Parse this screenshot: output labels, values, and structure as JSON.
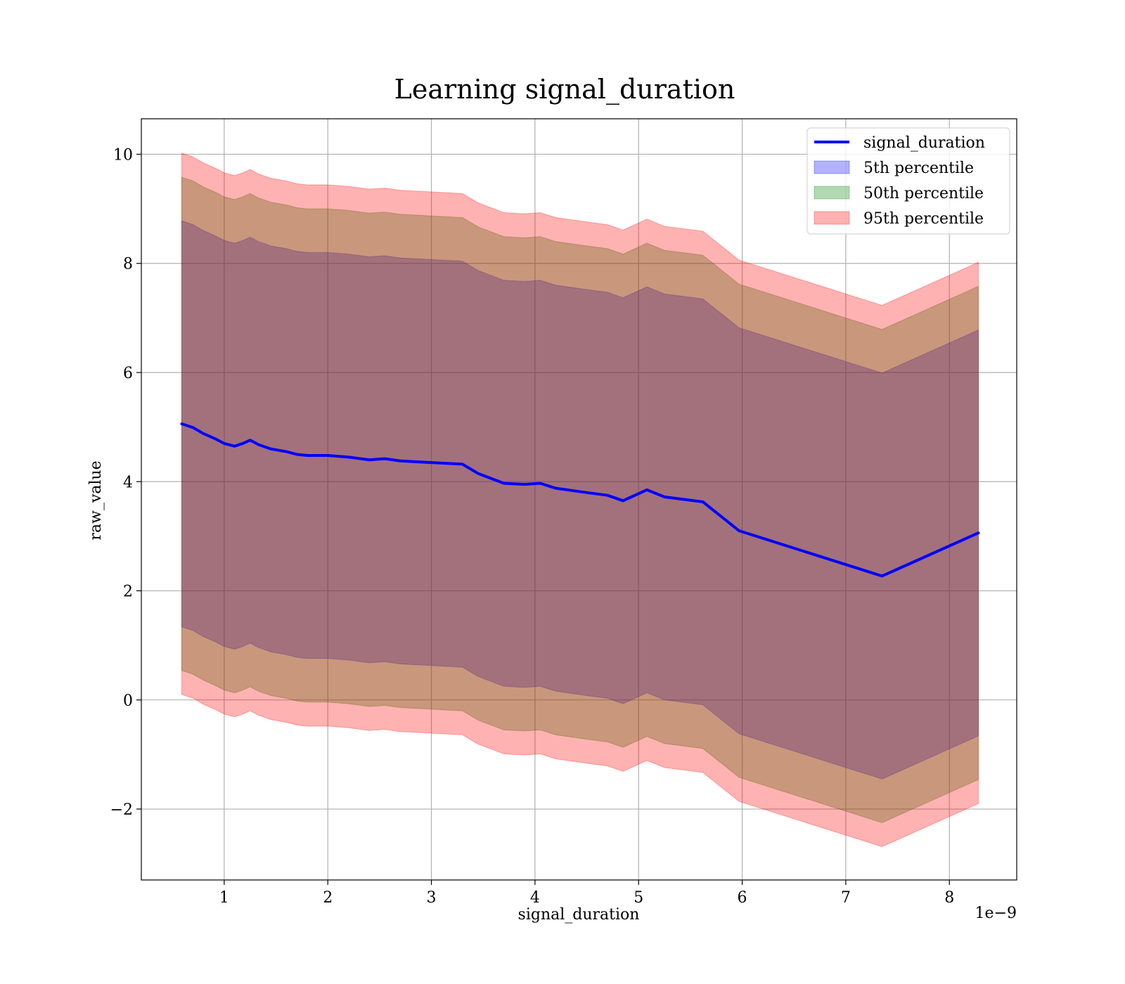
{
  "chart_data": {
    "type": "line",
    "title": "Learning signal_duration",
    "xlabel": "signal_duration",
    "ylabel": "raw_value",
    "x_offset_text": "1e−9",
    "xlim": [
      0.2,
      8.65
    ],
    "ylim": [
      -3.3,
      10.65
    ],
    "grid": true,
    "legend_position": "upper right",
    "x_ticks": [
      1,
      2,
      3,
      4,
      5,
      6,
      7,
      8
    ],
    "x_tick_labels": [
      "1",
      "2",
      "3",
      "4",
      "5",
      "6",
      "7",
      "8"
    ],
    "y_ticks": [
      -2,
      0,
      2,
      4,
      6,
      8,
      10
    ],
    "y_tick_labels": [
      "−2",
      "0",
      "2",
      "4",
      "6",
      "8",
      "10"
    ],
    "x": [
      0.59,
      0.7,
      0.8,
      0.92,
      1.0,
      1.1,
      1.18,
      1.25,
      1.33,
      1.45,
      1.6,
      1.7,
      1.8,
      2.0,
      2.2,
      2.4,
      2.55,
      2.7,
      2.9,
      3.0,
      3.3,
      3.45,
      3.7,
      3.9,
      4.05,
      4.2,
      4.5,
      4.7,
      4.85,
      5.08,
      5.25,
      5.62,
      5.97,
      7.35,
      8.28
    ],
    "series": [
      {
        "name": "signal_duration",
        "color": "#0000ff",
        "values": [
          5.06,
          4.99,
          4.88,
          4.78,
          4.7,
          4.65,
          4.7,
          4.76,
          4.68,
          4.6,
          4.55,
          4.5,
          4.48,
          4.48,
          4.45,
          4.4,
          4.42,
          4.38,
          4.36,
          4.35,
          4.32,
          4.15,
          3.97,
          3.95,
          3.97,
          3.88,
          3.8,
          3.75,
          3.65,
          3.85,
          3.72,
          3.63,
          3.1,
          2.27,
          3.06
        ]
      }
    ],
    "bands": [
      {
        "name": "5th percentile",
        "color": "#0000ff",
        "opacity": 0.3,
        "upper": [
          8.78,
          8.71,
          8.6,
          8.5,
          8.42,
          8.37,
          8.42,
          8.48,
          8.4,
          8.32,
          8.27,
          8.22,
          8.2,
          8.2,
          8.17,
          8.12,
          8.14,
          8.1,
          8.08,
          8.07,
          8.04,
          7.87,
          7.69,
          7.67,
          7.69,
          7.6,
          7.52,
          7.47,
          7.37,
          7.57,
          7.44,
          7.35,
          6.82,
          5.99,
          6.78
        ],
        "lower": [
          1.34,
          1.27,
          1.16,
          1.06,
          0.98,
          0.93,
          0.98,
          1.04,
          0.96,
          0.88,
          0.83,
          0.78,
          0.76,
          0.76,
          0.73,
          0.68,
          0.7,
          0.66,
          0.64,
          0.63,
          0.6,
          0.43,
          0.25,
          0.23,
          0.25,
          0.16,
          0.08,
          0.03,
          -0.07,
          0.13,
          0.0,
          -0.09,
          -0.62,
          -1.45,
          -0.66
        ]
      },
      {
        "name": "50th percentile",
        "color": "#008000",
        "opacity": 0.3,
        "upper": [
          9.58,
          9.51,
          9.4,
          9.3,
          9.22,
          9.17,
          9.22,
          9.28,
          9.2,
          9.12,
          9.07,
          9.02,
          9.0,
          9.0,
          8.97,
          8.92,
          8.94,
          8.9,
          8.88,
          8.87,
          8.84,
          8.67,
          8.49,
          8.47,
          8.49,
          8.4,
          8.32,
          8.27,
          8.17,
          8.37,
          8.24,
          8.15,
          7.62,
          6.79,
          7.58
        ],
        "lower": [
          0.54,
          0.47,
          0.36,
          0.26,
          0.18,
          0.13,
          0.18,
          0.24,
          0.16,
          0.08,
          0.03,
          -0.02,
          -0.04,
          -0.04,
          -0.07,
          -0.12,
          -0.1,
          -0.14,
          -0.16,
          -0.17,
          -0.2,
          -0.37,
          -0.55,
          -0.57,
          -0.55,
          -0.64,
          -0.72,
          -0.77,
          -0.87,
          -0.67,
          -0.8,
          -0.89,
          -1.42,
          -2.25,
          -1.46
        ]
      },
      {
        "name": "95th percentile",
        "color": "#ff0000",
        "opacity": 0.3,
        "upper": [
          10.02,
          9.95,
          9.84,
          9.74,
          9.66,
          9.61,
          9.66,
          9.72,
          9.64,
          9.56,
          9.51,
          9.46,
          9.44,
          9.44,
          9.41,
          9.36,
          9.38,
          9.34,
          9.32,
          9.31,
          9.28,
          9.11,
          8.93,
          8.91,
          8.93,
          8.84,
          8.76,
          8.71,
          8.61,
          8.81,
          8.68,
          8.59,
          8.06,
          7.23,
          8.02
        ],
        "lower": [
          0.1,
          0.03,
          -0.08,
          -0.18,
          -0.26,
          -0.31,
          -0.26,
          -0.2,
          -0.28,
          -0.36,
          -0.41,
          -0.46,
          -0.48,
          -0.48,
          -0.51,
          -0.56,
          -0.54,
          -0.58,
          -0.6,
          -0.61,
          -0.64,
          -0.81,
          -0.99,
          -1.01,
          -0.99,
          -1.08,
          -1.16,
          -1.21,
          -1.31,
          -1.11,
          -1.24,
          -1.33,
          -1.86,
          -2.69,
          -1.9
        ]
      }
    ]
  }
}
